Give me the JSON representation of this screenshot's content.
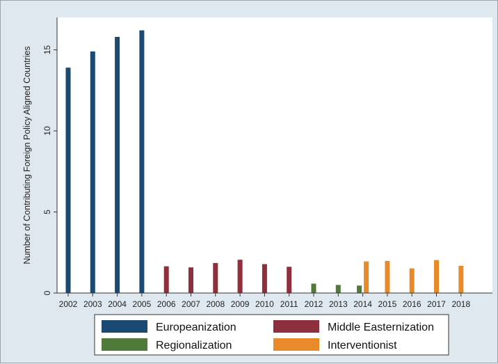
{
  "chart_data": {
    "type": "bar",
    "title": "",
    "xlabel": "",
    "ylabel": "Number of Contributing Foreign Policy Aligned Countries",
    "ylim": [
      0,
      17
    ],
    "yticks": [
      0,
      5,
      10,
      15
    ],
    "grid": false,
    "legend_placement": "bottom",
    "categories": [
      "2002",
      "2003",
      "2004",
      "2005",
      "2006",
      "2007",
      "2008",
      "2009",
      "2010",
      "2011",
      "2012",
      "2013",
      "2014",
      "2015",
      "2016",
      "2017",
      "2018"
    ],
    "series": [
      {
        "name": "Europeanization",
        "color": "#1a4a72",
        "values": [
          13.9,
          14.9,
          15.8,
          16.2,
          null,
          null,
          null,
          null,
          null,
          null,
          null,
          null,
          null,
          null,
          null,
          null,
          null
        ]
      },
      {
        "name": "Middle Easternization",
        "color": "#8e2f3e",
        "values": [
          null,
          null,
          null,
          null,
          1.65,
          1.58,
          1.85,
          2.05,
          1.78,
          1.62,
          null,
          null,
          null,
          null,
          null,
          null,
          null
        ]
      },
      {
        "name": "Regionalization",
        "color": "#4f7a39",
        "values": [
          null,
          null,
          null,
          null,
          null,
          null,
          null,
          null,
          null,
          null,
          0.58,
          0.5,
          0.46,
          null,
          null,
          null,
          null
        ]
      },
      {
        "name": "Interventionist",
        "color": "#e8892a",
        "values": [
          null,
          null,
          null,
          null,
          null,
          null,
          null,
          null,
          null,
          null,
          null,
          null,
          1.95,
          1.98,
          1.52,
          2.03,
          1.68
        ]
      }
    ]
  }
}
